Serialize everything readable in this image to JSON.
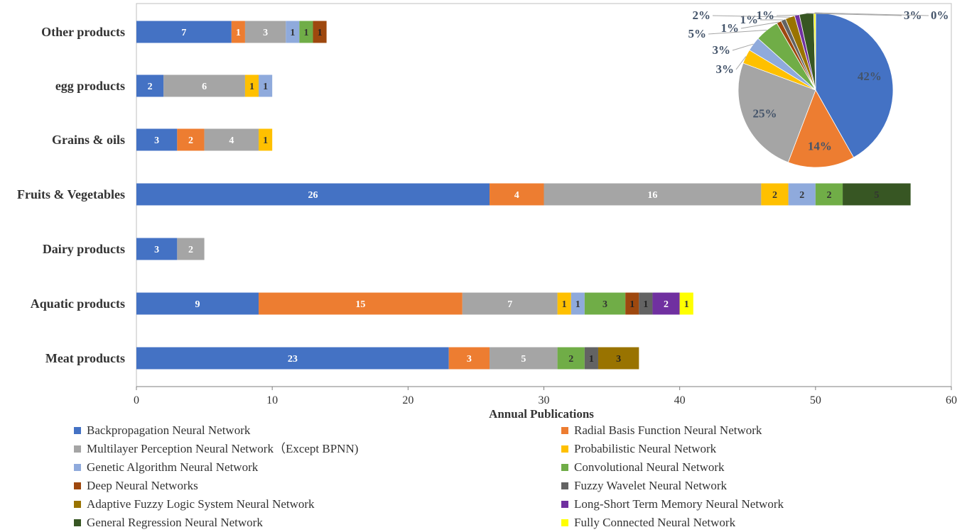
{
  "chart_data": [
    {
      "type": "bar",
      "orientation": "horizontal",
      "stacked": true,
      "xlabel": "Annual Publications",
      "ylabel": "",
      "xlim": [
        0,
        60
      ],
      "x_ticks": [
        0,
        10,
        20,
        30,
        40,
        50,
        60
      ],
      "grid": false,
      "legend_position": "bottom",
      "categories": [
        "Other products",
        "egg products",
        "Grains  & oils",
        "Fruits & Vegetables",
        "Dairy products",
        "Aquatic products",
        "Meat products"
      ],
      "series": [
        {
          "name": "Backpropagation Neural Network",
          "color": "#4472C4",
          "values": [
            7,
            2,
            3,
            26,
            3,
            9,
            23
          ]
        },
        {
          "name": "Radial Basis Function Neural Network",
          "color": "#ED7D31",
          "values": [
            1,
            0,
            2,
            4,
            0,
            15,
            3
          ]
        },
        {
          "name": "Multilayer Perception Neural Network（Except BPNN)",
          "color": "#A5A5A5",
          "values": [
            3,
            6,
            4,
            16,
            2,
            7,
            5
          ]
        },
        {
          "name": "Probabilistic Neural Network",
          "color": "#FFC000",
          "values": [
            0,
            1,
            1,
            2,
            0,
            1,
            0
          ]
        },
        {
          "name": "Genetic Algorithm  Neural Network",
          "color": "#8FAADC",
          "values": [
            1,
            1,
            0,
            2,
            0,
            1,
            0
          ]
        },
        {
          "name": "Convolutional Neural Network",
          "color": "#70AD47",
          "values": [
            1,
            0,
            0,
            2,
            0,
            3,
            2
          ]
        },
        {
          "name": "Deep Neural Networks",
          "color": "#9E480E",
          "values": [
            1,
            0,
            0,
            0,
            0,
            1,
            0
          ]
        },
        {
          "name": "Fuzzy Wavelet Neural Network",
          "color": "#636363",
          "values": [
            0,
            0,
            0,
            0,
            0,
            1,
            1
          ]
        },
        {
          "name": "Adaptive Fuzzy Logic System Neural Network",
          "color": "#997300",
          "values": [
            0,
            0,
            0,
            0,
            0,
            0,
            3
          ]
        },
        {
          "name": "Long-Short Term Memory Neural Network",
          "color": "#7030A0",
          "values": [
            0,
            0,
            0,
            0,
            0,
            2,
            0
          ]
        },
        {
          "name": "General Regression Neural Network",
          "color": "#375623",
          "values": [
            0,
            0,
            0,
            5,
            0,
            0,
            0
          ]
        },
        {
          "name": "Fully Connected Neural Network",
          "color": "#FFFF00",
          "values": [
            0,
            0,
            0,
            0,
            0,
            1,
            0
          ]
        }
      ]
    },
    {
      "type": "pie",
      "slices": [
        {
          "label": "42%",
          "value": 42,
          "color": "#4472C4"
        },
        {
          "label": "14%",
          "value": 14,
          "color": "#ED7D31"
        },
        {
          "label": "25%",
          "value": 25,
          "color": "#A5A5A5"
        },
        {
          "label": "3%",
          "value": 3,
          "color": "#FFC000"
        },
        {
          "label": "3%",
          "value": 3,
          "color": "#8FAADC"
        },
        {
          "label": "5%",
          "value": 5,
          "color": "#70AD47"
        },
        {
          "label": "1%",
          "value": 1,
          "color": "#9E480E"
        },
        {
          "label": "1%",
          "value": 1,
          "color": "#636363"
        },
        {
          "label": "2%",
          "value": 2,
          "color": "#997300"
        },
        {
          "label": "1%",
          "value": 1,
          "color": "#7030A0"
        },
        {
          "label": "3%",
          "value": 3,
          "color": "#375623"
        },
        {
          "label": "0%",
          "value": 0.4,
          "color": "#FFFF00"
        }
      ]
    }
  ]
}
